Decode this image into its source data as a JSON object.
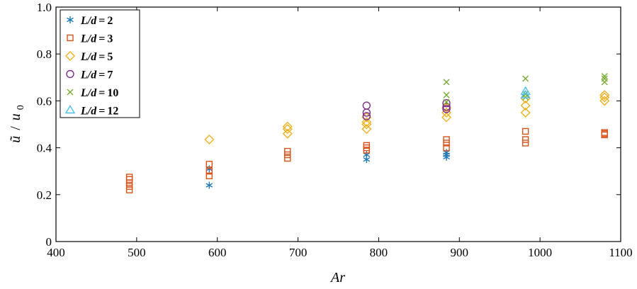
{
  "chart_data": {
    "type": "scatter",
    "xlabel": "Ar",
    "ylabel": "ũ/u0",
    "ylabel_main": "ũ",
    "ylabel_sep": "/",
    "ylabel_denominator": "u",
    "ylabel_subscript": "0",
    "xlim": [
      400,
      1100
    ],
    "ylim": [
      0,
      1.0
    ],
    "xticks": [
      400,
      500,
      600,
      700,
      800,
      900,
      1000,
      1100
    ],
    "yticks": [
      0,
      0.2,
      0.4,
      0.6,
      0.8,
      1.0
    ],
    "xtick_labels": [
      "400",
      "500",
      "600",
      "700",
      "800",
      "900",
      "1000",
      "1100"
    ],
    "ytick_labels": [
      "0",
      "0.2",
      "0.4",
      "0.6",
      "0.8",
      "1.0"
    ],
    "grid": false,
    "legend_position": "top-left",
    "series": [
      {
        "name": "L/d = 2",
        "marker": "asterisk",
        "color": "#1f77b4",
        "points": [
          [
            590,
            0.24
          ],
          [
            590,
            0.31
          ],
          [
            785,
            0.35
          ],
          [
            785,
            0.37
          ],
          [
            884,
            0.36
          ],
          [
            884,
            0.37
          ],
          [
            884,
            0.38
          ]
        ]
      },
      {
        "name": "L/d = 3",
        "marker": "square",
        "color": "#d95319",
        "points": [
          [
            491,
            0.22
          ],
          [
            491,
            0.235
          ],
          [
            491,
            0.25
          ],
          [
            491,
            0.265
          ],
          [
            491,
            0.275
          ],
          [
            590,
            0.28
          ],
          [
            590,
            0.3
          ],
          [
            590,
            0.33
          ],
          [
            687,
            0.355
          ],
          [
            687,
            0.37
          ],
          [
            687,
            0.385
          ],
          [
            785,
            0.39
          ],
          [
            785,
            0.4
          ],
          [
            785,
            0.41
          ],
          [
            884,
            0.4
          ],
          [
            884,
            0.42
          ],
          [
            884,
            0.435
          ],
          [
            982,
            0.42
          ],
          [
            982,
            0.435
          ],
          [
            982,
            0.47
          ],
          [
            1080,
            0.455
          ],
          [
            1080,
            0.46
          ],
          [
            1080,
            0.465
          ]
        ]
      },
      {
        "name": "L/d = 5",
        "marker": "diamond",
        "color": "#edb120",
        "points": [
          [
            590,
            0.435
          ],
          [
            687,
            0.46
          ],
          [
            687,
            0.48
          ],
          [
            687,
            0.49
          ],
          [
            785,
            0.48
          ],
          [
            785,
            0.5
          ],
          [
            785,
            0.51
          ],
          [
            785,
            0.53
          ],
          [
            884,
            0.53
          ],
          [
            884,
            0.55
          ],
          [
            884,
            0.57
          ],
          [
            982,
            0.55
          ],
          [
            982,
            0.58
          ],
          [
            982,
            0.61
          ],
          [
            1080,
            0.6
          ],
          [
            1080,
            0.615
          ],
          [
            1080,
            0.625
          ]
        ]
      },
      {
        "name": "L/d = 7",
        "marker": "circle",
        "color": "#7e2f8e",
        "points": [
          [
            785,
            0.535
          ],
          [
            785,
            0.55
          ],
          [
            785,
            0.58
          ],
          [
            884,
            0.565
          ],
          [
            884,
            0.575
          ],
          [
            884,
            0.59
          ]
        ]
      },
      {
        "name": "L/d = 10",
        "marker": "x",
        "color": "#77ac30",
        "points": [
          [
            884,
            0.595
          ],
          [
            884,
            0.625
          ],
          [
            884,
            0.68
          ],
          [
            982,
            0.615
          ],
          [
            982,
            0.63
          ],
          [
            982,
            0.695
          ],
          [
            1080,
            0.68
          ],
          [
            1080,
            0.695
          ],
          [
            1080,
            0.705
          ]
        ]
      },
      {
        "name": "L/d = 12",
        "marker": "triangle",
        "color": "#4dbeee",
        "points": [
          [
            982,
            0.625
          ],
          [
            982,
            0.64
          ]
        ]
      }
    ],
    "legend_labels": [
      {
        "lhs": "L/d",
        "eq": "=",
        "rhs": "2"
      },
      {
        "lhs": "L/d",
        "eq": "=",
        "rhs": "3"
      },
      {
        "lhs": "L/d",
        "eq": "=",
        "rhs": "5"
      },
      {
        "lhs": "L/d",
        "eq": "=",
        "rhs": "7"
      },
      {
        "lhs": "L/d",
        "eq": "=",
        "rhs": "10"
      },
      {
        "lhs": "L/d",
        "eq": "=",
        "rhs": "12"
      }
    ]
  }
}
